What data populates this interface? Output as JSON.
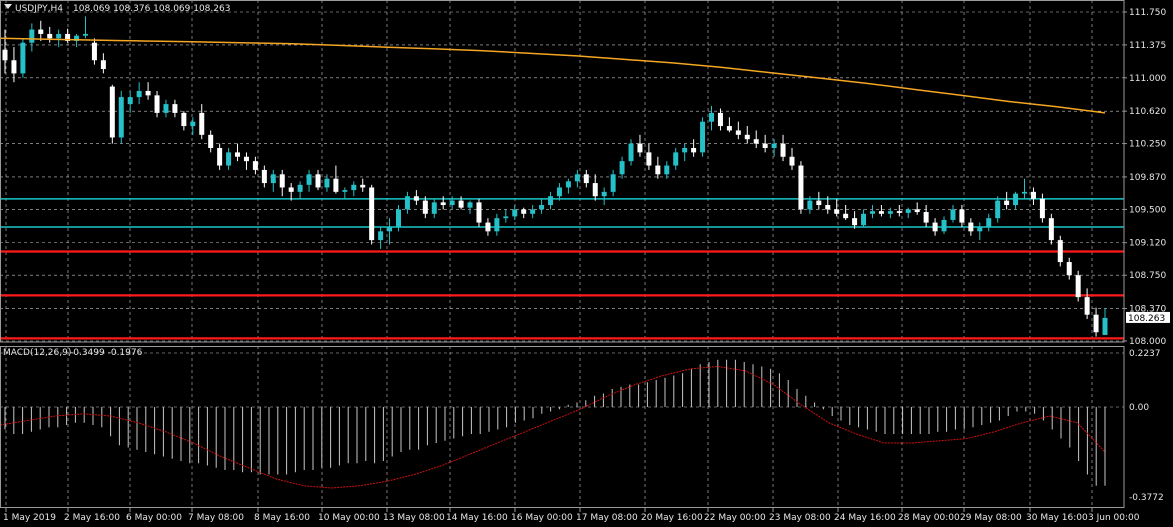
{
  "header": {
    "symbol_tf": "USDJPY,H4",
    "ohlc": "108.069 108.376 108.069 108.263"
  },
  "macd_header": {
    "label": "MACD(12,26,9)",
    "values": "-0.3499 -0.1976"
  },
  "colors": {
    "background": "#000000",
    "grid": "#c8c8c8",
    "bull_candle": "#25c0c8",
    "bear_candle": "#ffffff",
    "ma_line": "#f5a623",
    "support_line": "#18c7c9",
    "resistance_line": "#ff1a1a",
    "macd_hist": "#c8c8c8",
    "macd_signal": "#d01010",
    "price_tag_bg": "#ffffff",
    "axis_text": "#e6e6e6"
  },
  "chart_data": [
    {
      "type": "candlestick",
      "symbol": "USDJPY",
      "timeframe": "H4",
      "x_ticks": [
        "1 May 2019",
        "2 May 16:00",
        "6 May 00:00",
        "7 May 08:00",
        "8 May 16:00",
        "10 May 00:00",
        "13 May 08:00",
        "14 May 16:00",
        "16 May 00:00",
        "17 May 08:00",
        "20 May 16:00",
        "22 May 00:00",
        "23 May 08:00",
        "24 May 16:00",
        "28 May 00:00",
        "29 May 08:00",
        "30 May 16:00",
        "3 Jun 00:00"
      ],
      "y_ticks": [
        "111.750",
        "111.375",
        "111.000",
        "110.620",
        "110.250",
        "109.870",
        "109.500",
        "109.120",
        "108.750",
        "108.370",
        "108.000"
      ],
      "ylim": [
        108.0,
        111.75
      ],
      "current_price": "108.263",
      "ohlc": [
        [
          111.32,
          111.55,
          111.05,
          111.2
        ],
        [
          111.2,
          111.35,
          110.95,
          111.05
        ],
        [
          111.05,
          111.45,
          111.0,
          111.4
        ],
        [
          111.4,
          111.62,
          111.3,
          111.55
        ],
        [
          111.55,
          111.65,
          111.42,
          111.5
        ],
        [
          111.5,
          111.58,
          111.4,
          111.45
        ],
        [
          111.45,
          111.55,
          111.35,
          111.5
        ],
        [
          111.5,
          111.56,
          111.4,
          111.42
        ],
        [
          111.42,
          111.5,
          111.35,
          111.48
        ],
        [
          111.48,
          111.7,
          111.45,
          111.5
        ],
        [
          111.4,
          111.45,
          111.15,
          111.2
        ],
        [
          111.2,
          111.28,
          111.05,
          111.1
        ],
        [
          110.9,
          110.92,
          110.25,
          110.32
        ],
        [
          110.32,
          110.85,
          110.25,
          110.78
        ],
        [
          110.7,
          110.85,
          110.6,
          110.78
        ],
        [
          110.78,
          110.95,
          110.7,
          110.85
        ],
        [
          110.85,
          110.95,
          110.75,
          110.8
        ],
        [
          110.8,
          110.85,
          110.55,
          110.6
        ],
        [
          110.6,
          110.75,
          110.55,
          110.7
        ],
        [
          110.7,
          110.75,
          110.55,
          110.6
        ],
        [
          110.6,
          110.62,
          110.4,
          110.45
        ],
        [
          110.45,
          110.55,
          110.35,
          110.5
        ],
        [
          110.6,
          110.7,
          110.3,
          110.35
        ],
        [
          110.35,
          110.4,
          110.15,
          110.2
        ],
        [
          110.2,
          110.25,
          109.95,
          110.0
        ],
        [
          110.0,
          110.2,
          109.95,
          110.15
        ],
        [
          110.15,
          110.25,
          110.05,
          110.1
        ],
        [
          110.1,
          110.15,
          109.95,
          110.05
        ],
        [
          110.05,
          110.1,
          109.9,
          109.95
        ],
        [
          109.95,
          110.0,
          109.75,
          109.8
        ],
        [
          109.8,
          109.95,
          109.7,
          109.9
        ],
        [
          109.9,
          109.95,
          109.65,
          109.75
        ],
        [
          109.75,
          109.8,
          109.6,
          109.7
        ],
        [
          109.7,
          109.82,
          109.62,
          109.78
        ],
        [
          109.78,
          109.95,
          109.7,
          109.9
        ],
        [
          109.9,
          109.95,
          109.72,
          109.75
        ],
        [
          109.75,
          109.9,
          109.7,
          109.85
        ],
        [
          109.85,
          110.0,
          109.68,
          109.7
        ],
        [
          109.7,
          109.75,
          109.62,
          109.72
        ],
        [
          109.72,
          109.82,
          109.65,
          109.78
        ],
        [
          109.78,
          109.85,
          109.7,
          109.75
        ],
        [
          109.75,
          109.78,
          109.1,
          109.15
        ],
        [
          109.15,
          109.3,
          109.05,
          109.25
        ],
        [
          109.25,
          109.4,
          109.1,
          109.3
        ],
        [
          109.3,
          109.55,
          109.25,
          109.5
        ],
        [
          109.5,
          109.7,
          109.45,
          109.65
        ],
        [
          109.65,
          109.72,
          109.55,
          109.6
        ],
        [
          109.6,
          109.65,
          109.4,
          109.45
        ],
        [
          109.45,
          109.62,
          109.4,
          109.58
        ],
        [
          109.58,
          109.65,
          109.5,
          109.55
        ],
        [
          109.55,
          109.65,
          109.5,
          109.6
        ],
        [
          109.6,
          109.65,
          109.5,
          109.52
        ],
        [
          109.52,
          109.6,
          109.45,
          109.58
        ],
        [
          109.58,
          109.62,
          109.3,
          109.35
        ],
        [
          109.35,
          109.4,
          109.2,
          109.25
        ],
        [
          109.25,
          109.45,
          109.2,
          109.4
        ],
        [
          109.4,
          109.5,
          109.35,
          109.42
        ],
        [
          109.42,
          109.55,
          109.38,
          109.5
        ],
        [
          109.5,
          109.52,
          109.4,
          109.45
        ],
        [
          109.45,
          109.55,
          109.4,
          109.5
        ],
        [
          109.5,
          109.62,
          109.45,
          109.55
        ],
        [
          109.55,
          109.7,
          109.5,
          109.65
        ],
        [
          109.65,
          109.8,
          109.6,
          109.75
        ],
        [
          109.75,
          109.85,
          109.68,
          109.82
        ],
        [
          109.82,
          109.95,
          109.75,
          109.9
        ],
        [
          109.9,
          109.95,
          109.75,
          109.8
        ],
        [
          109.8,
          109.9,
          109.6,
          109.65
        ],
        [
          109.65,
          109.75,
          109.55,
          109.7
        ],
        [
          109.7,
          109.95,
          109.65,
          109.9
        ],
        [
          109.9,
          110.1,
          109.85,
          110.05
        ],
        [
          110.05,
          110.3,
          110.0,
          110.25
        ],
        [
          110.25,
          110.35,
          110.1,
          110.15
        ],
        [
          110.15,
          110.25,
          109.95,
          110.0
        ],
        [
          110.0,
          110.1,
          109.85,
          109.9
        ],
        [
          109.9,
          110.05,
          109.85,
          110.0
        ],
        [
          110.0,
          110.2,
          109.95,
          110.15
        ],
        [
          110.15,
          110.25,
          110.05,
          110.2
        ],
        [
          110.2,
          110.3,
          110.1,
          110.15
        ],
        [
          110.15,
          110.55,
          110.1,
          110.5
        ],
        [
          110.5,
          110.68,
          110.4,
          110.6
        ],
        [
          110.6,
          110.65,
          110.4,
          110.45
        ],
        [
          110.45,
          110.55,
          110.38,
          110.4
        ],
        [
          110.4,
          110.5,
          110.3,
          110.35
        ],
        [
          110.35,
          110.45,
          110.25,
          110.3
        ],
        [
          110.3,
          110.4,
          110.2,
          110.25
        ],
        [
          110.25,
          110.35,
          110.15,
          110.2
        ],
        [
          110.2,
          110.3,
          110.1,
          110.25
        ],
        [
          110.25,
          110.35,
          110.05,
          110.1
        ],
        [
          110.1,
          110.2,
          109.95,
          110.0
        ],
        [
          110.0,
          110.05,
          109.45,
          109.5
        ],
        [
          109.5,
          109.65,
          109.45,
          109.6
        ],
        [
          109.6,
          109.7,
          109.5,
          109.55
        ],
        [
          109.55,
          109.65,
          109.45,
          109.5
        ],
        [
          109.5,
          109.62,
          109.42,
          109.45
        ],
        [
          109.45,
          109.55,
          109.38,
          109.4
        ],
        [
          109.4,
          109.48,
          109.28,
          109.32
        ],
        [
          109.32,
          109.5,
          109.3,
          109.45
        ],
        [
          109.45,
          109.55,
          109.4,
          109.48
        ],
        [
          109.48,
          109.55,
          109.42,
          109.45
        ],
        [
          109.45,
          109.52,
          109.4,
          109.48
        ],
        [
          109.48,
          109.55,
          109.42,
          109.46
        ],
        [
          109.46,
          109.52,
          109.4,
          109.5
        ],
        [
          109.5,
          109.58,
          109.44,
          109.47
        ],
        [
          109.47,
          109.55,
          109.3,
          109.35
        ],
        [
          109.35,
          109.4,
          109.2,
          109.25
        ],
        [
          109.25,
          109.42,
          109.22,
          109.38
        ],
        [
          109.38,
          109.55,
          109.35,
          109.5
        ],
        [
          109.5,
          109.55,
          109.3,
          109.35
        ],
        [
          109.35,
          109.4,
          109.2,
          109.25
        ],
        [
          109.25,
          109.35,
          109.15,
          109.3
        ],
        [
          109.3,
          109.45,
          109.25,
          109.4
        ],
        [
          109.4,
          109.65,
          109.35,
          109.6
        ],
        [
          109.6,
          109.7,
          109.5,
          109.55
        ],
        [
          109.55,
          109.7,
          109.5,
          109.68
        ],
        [
          109.68,
          109.85,
          109.62,
          109.7
        ],
        [
          109.7,
          109.75,
          109.55,
          109.62
        ],
        [
          109.62,
          109.68,
          109.35,
          109.4
        ],
        [
          109.4,
          109.45,
          109.1,
          109.15
        ],
        [
          109.15,
          109.2,
          108.85,
          108.9
        ],
        [
          108.9,
          108.95,
          108.7,
          108.75
        ],
        [
          108.75,
          108.8,
          108.45,
          108.5
        ],
        [
          108.5,
          108.6,
          108.25,
          108.3
        ],
        [
          108.3,
          108.38,
          108.05,
          108.1
        ],
        [
          108.069,
          108.376,
          108.069,
          108.263
        ]
      ],
      "ma_line": [
        111.45,
        111.44,
        111.43,
        111.42,
        111.41,
        111.4,
        111.39,
        111.37,
        111.35,
        111.33,
        111.31,
        111.28,
        111.25,
        111.21,
        111.17,
        111.12,
        111.06,
        111.0,
        110.94,
        110.87,
        110.8,
        110.73,
        110.67,
        110.6
      ],
      "support_levels": [
        109.62,
        109.3
      ],
      "resistance_levels": [
        109.02,
        108.52,
        108.03
      ]
    },
    {
      "type": "bar",
      "name": "MACD(12,26,9)",
      "y_ticks": [
        "0.2237",
        "0.00",
        "-0.3772"
      ],
      "ylim": [
        -0.4,
        0.24
      ],
      "macd_hist": [
        -0.1,
        -0.12,
        -0.12,
        -0.11,
        -0.1,
        -0.09,
        -0.09,
        -0.08,
        -0.07,
        -0.07,
        -0.08,
        -0.09,
        -0.13,
        -0.17,
        -0.18,
        -0.19,
        -0.2,
        -0.21,
        -0.22,
        -0.23,
        -0.24,
        -0.25,
        -0.25,
        -0.26,
        -0.27,
        -0.28,
        -0.28,
        -0.29,
        -0.29,
        -0.3,
        -0.3,
        -0.3,
        -0.3,
        -0.29,
        -0.28,
        -0.28,
        -0.27,
        -0.27,
        -0.26,
        -0.25,
        -0.25,
        -0.24,
        -0.25,
        -0.24,
        -0.22,
        -0.2,
        -0.19,
        -0.19,
        -0.17,
        -0.16,
        -0.15,
        -0.14,
        -0.13,
        -0.12,
        -0.12,
        -0.11,
        -0.1,
        -0.09,
        -0.07,
        -0.06,
        -0.05,
        -0.03,
        -0.02,
        -0.01,
        0.01,
        0.02,
        0.03,
        0.05,
        0.06,
        0.08,
        0.09,
        0.1,
        0.1,
        0.11,
        0.12,
        0.13,
        0.14,
        0.15,
        0.17,
        0.19,
        0.2,
        0.21,
        0.21,
        0.21,
        0.2,
        0.19,
        0.18,
        0.17,
        0.15,
        0.12,
        0.08,
        0.05,
        0.02,
        -0.01,
        -0.04,
        -0.06,
        -0.08,
        -0.09,
        -0.1,
        -0.11,
        -0.12,
        -0.12,
        -0.12,
        -0.12,
        -0.12,
        -0.12,
        -0.11,
        -0.11,
        -0.1,
        -0.1,
        -0.09,
        -0.08,
        -0.07,
        -0.06,
        -0.04,
        -0.02,
        -0.02,
        -0.03,
        -0.06,
        -0.1,
        -0.14,
        -0.18,
        -0.24,
        -0.3,
        -0.35,
        -0.35
      ],
      "signal": [
        -0.08,
        -0.06,
        -0.04,
        -0.03,
        -0.04,
        -0.07,
        -0.11,
        -0.16,
        -0.22,
        -0.27,
        -0.32,
        -0.35,
        -0.36,
        -0.35,
        -0.33,
        -0.3,
        -0.26,
        -0.21,
        -0.16,
        -0.11,
        -0.06,
        -0.01,
        0.05,
        0.1,
        0.14,
        0.17,
        0.18,
        0.16,
        0.1,
        0.01,
        -0.07,
        -0.12,
        -0.16,
        -0.16,
        -0.15,
        -0.14,
        -0.11,
        -0.07,
        -0.04,
        -0.07,
        -0.2
      ]
    }
  ]
}
